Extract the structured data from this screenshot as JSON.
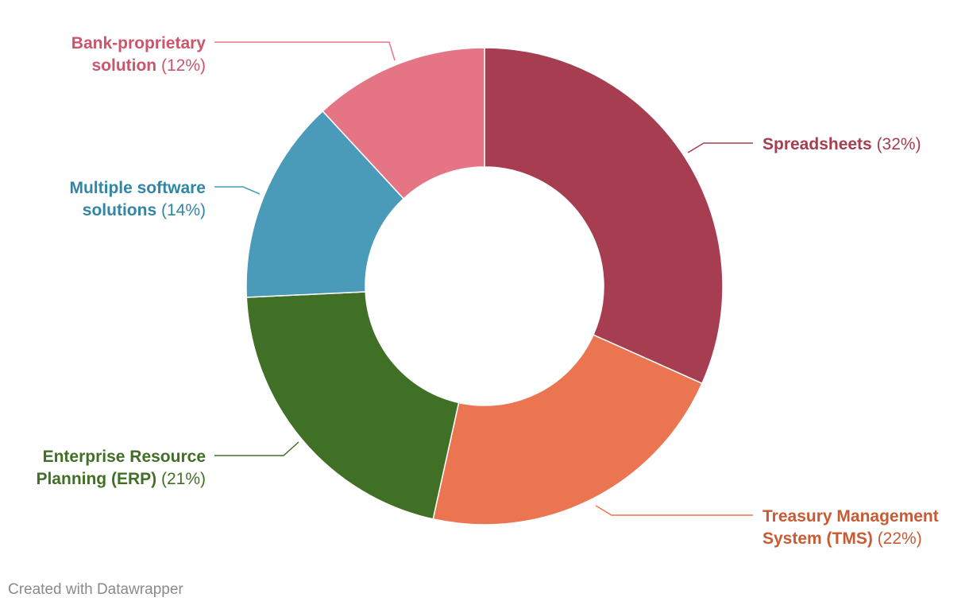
{
  "chart_data": {
    "type": "pie",
    "donut": true,
    "legend": "direct labels",
    "slices": [
      {
        "label_lines": [
          "Spreadsheets"
        ],
        "pct_text": "(32%)",
        "value": 32,
        "color": "#a63d50",
        "label_color": "#a63d50"
      },
      {
        "label_lines": [
          "Treasury Management",
          "System (TMS)"
        ],
        "pct_text": "(22%)",
        "value": 22,
        "color": "#ea7550",
        "label_color": "#c95a33"
      },
      {
        "label_lines": [
          "Enterprise Resource",
          "Planning (ERP)"
        ],
        "pct_text": "(21%)",
        "value": 21,
        "color": "#407026",
        "label_color": "#407026"
      },
      {
        "label_lines": [
          "Multiple software",
          "solutions"
        ],
        "pct_text": "(14%)",
        "value": 14,
        "color": "#4a9aba",
        "label_color": "#2f86a6"
      },
      {
        "label_lines": [
          "Bank-proprietary",
          "solution"
        ],
        "pct_text": "(12%)",
        "value": 12,
        "color": "#e57585",
        "label_color": "#c9566a"
      }
    ]
  },
  "footer": {
    "credit": "Created with Datawrapper"
  }
}
